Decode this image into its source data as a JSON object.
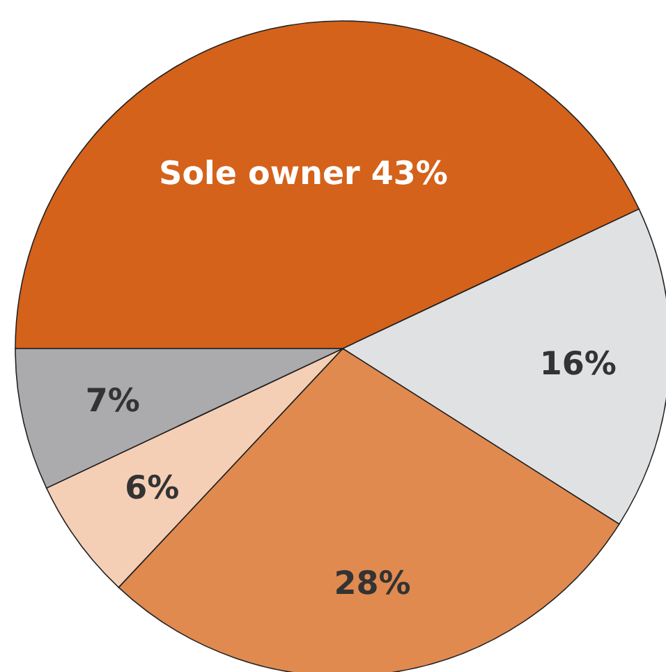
{
  "chart_data": {
    "type": "pie",
    "categories": [
      "Sole owner",
      null,
      null,
      null,
      null
    ],
    "values": [
      43,
      16,
      28,
      6,
      7
    ],
    "colors": [
      "#d4621b",
      "#e0e1e3",
      "#e08a50",
      "#f4cfb6",
      "#ababae"
    ],
    "value_labels": [
      "43%",
      "16%",
      "28%",
      "6%",
      "7%"
    ]
  }
}
